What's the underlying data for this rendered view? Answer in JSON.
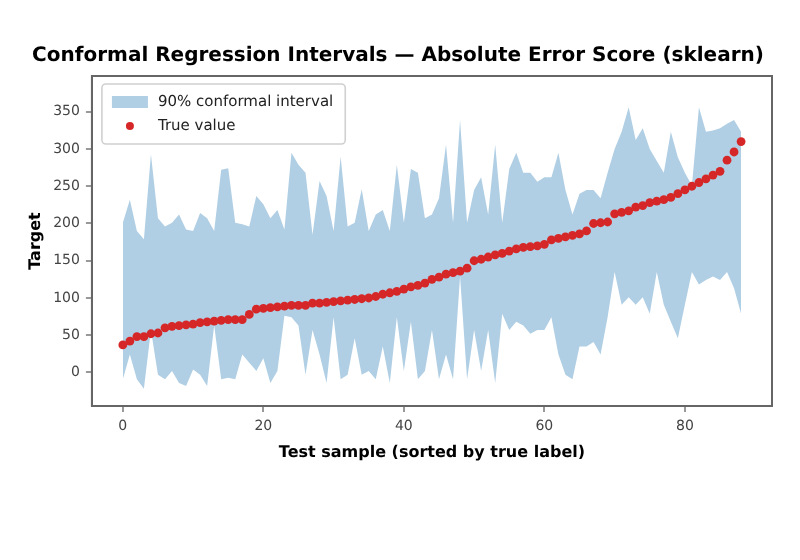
{
  "chart_data": {
    "type": "scatter",
    "title": "Conformal Regression Intervals — Absolute Error Score (sklearn)",
    "xlabel": "Test sample (sorted by true label)",
    "ylabel": "Target",
    "x": [
      0,
      1,
      2,
      3,
      4,
      5,
      6,
      7,
      8,
      9,
      10,
      11,
      12,
      13,
      14,
      15,
      16,
      17,
      18,
      19,
      20,
      21,
      22,
      23,
      24,
      25,
      26,
      27,
      28,
      29,
      30,
      31,
      32,
      33,
      34,
      35,
      36,
      37,
      38,
      39,
      40,
      41,
      42,
      43,
      44,
      45,
      46,
      47,
      48,
      49,
      50,
      51,
      52,
      53,
      54,
      55,
      56,
      57,
      58,
      59,
      60,
      61,
      62,
      63,
      64,
      65,
      66,
      67,
      68,
      69,
      70,
      71,
      72,
      73,
      74,
      75,
      76,
      77,
      78,
      79,
      80,
      81,
      82,
      83,
      84,
      85,
      86,
      87,
      88
    ],
    "series": [
      {
        "name": "90% conformal interval",
        "type": "area",
        "color": "#b0cfe4",
        "values": [
          null,
          null,
          null,
          null,
          null,
          null,
          null,
          null,
          null,
          null,
          null,
          null,
          null,
          null,
          null,
          null,
          null,
          null,
          null,
          null,
          null,
          null,
          null,
          null,
          null,
          null,
          null,
          null,
          null,
          null,
          null,
          null,
          null,
          null,
          null,
          null,
          null,
          null,
          null,
          null,
          null,
          null,
          null,
          null,
          null,
          null,
          null,
          null,
          null,
          null,
          null,
          null,
          null,
          null,
          null,
          null,
          null,
          null,
          null,
          null,
          null,
          null,
          null,
          null,
          null,
          null,
          null,
          null,
          null,
          null,
          null,
          null,
          null,
          null,
          null,
          null,
          null,
          null,
          null,
          null,
          null,
          null,
          null,
          null,
          null,
          null,
          null,
          null,
          null
        ],
        "upper": [
          201,
          232,
          190,
          179,
          293,
          207,
          196,
          201,
          212,
          192,
          190,
          214,
          207,
          190,
          272,
          274,
          201,
          199,
          196,
          237,
          226,
          207,
          218,
          192,
          295,
          279,
          268,
          185,
          257,
          237,
          190,
          290,
          196,
          201,
          246,
          190,
          212,
          218,
          190,
          279,
          201,
          273,
          268,
          207,
          212,
          234,
          306,
          201,
          339,
          201,
          245,
          262,
          212,
          306,
          201,
          273,
          295,
          268,
          268,
          256,
          262,
          262,
          295,
          245,
          212,
          240,
          245,
          245,
          234,
          268,
          300,
          323,
          356,
          312,
          328,
          300,
          284,
          268,
          323,
          289,
          268,
          251,
          356,
          323,
          325,
          328,
          334,
          339,
          323
        ],
        "lower": [
          -9,
          24,
          -9,
          -22,
          57,
          -3,
          -9,
          2,
          -14,
          -18,
          4,
          -3,
          -18,
          63,
          -9,
          -7,
          -9,
          24,
          13,
          2,
          19,
          -14,
          2,
          76,
          74,
          63,
          -3,
          57,
          24,
          -14,
          74,
          -9,
          -3,
          46,
          -3,
          2,
          -9,
          35,
          -14,
          74,
          2,
          68,
          -9,
          2,
          57,
          -9,
          24,
          -9,
          129,
          -9,
          57,
          2,
          57,
          -14,
          79,
          57,
          68,
          63,
          52,
          57,
          57,
          74,
          24,
          -3,
          -9,
          35,
          35,
          41,
          24,
          74,
          135,
          91,
          101,
          91,
          101,
          79,
          135,
          91,
          68,
          46,
          91,
          135,
          118,
          124,
          129,
          124,
          135,
          113,
          79
        ]
      },
      {
        "name": "True value",
        "type": "scatter",
        "color": "#d62728",
        "marker": "circle",
        "values": [
          37,
          42,
          48,
          48,
          52,
          53,
          60,
          62,
          63,
          64,
          65,
          67,
          68,
          69,
          70,
          71,
          71,
          71,
          78,
          85,
          86,
          87,
          88,
          89,
          90,
          90,
          90,
          93,
          93,
          94,
          95,
          96,
          97,
          98,
          99,
          100,
          102,
          105,
          107,
          109,
          112,
          115,
          117,
          120,
          125,
          128,
          132,
          134,
          136,
          140,
          150,
          152,
          155,
          158,
          160,
          163,
          166,
          168,
          169,
          170,
          172,
          178,
          180,
          182,
          184,
          186,
          190,
          200,
          201,
          202,
          213,
          215,
          217,
          222,
          224,
          228,
          230,
          232,
          235,
          240,
          245,
          250,
          255,
          260,
          265,
          270,
          285,
          296,
          310
        ]
      }
    ],
    "xlim": [
      -4.4,
      92.4
    ],
    "xticks": [
      0,
      20,
      40,
      60,
      80
    ],
    "ylim": [
      -45,
      398
    ],
    "yticks": [
      0,
      50,
      100,
      150,
      200,
      250,
      300,
      350
    ],
    "grid": false,
    "legend": "top left"
  }
}
